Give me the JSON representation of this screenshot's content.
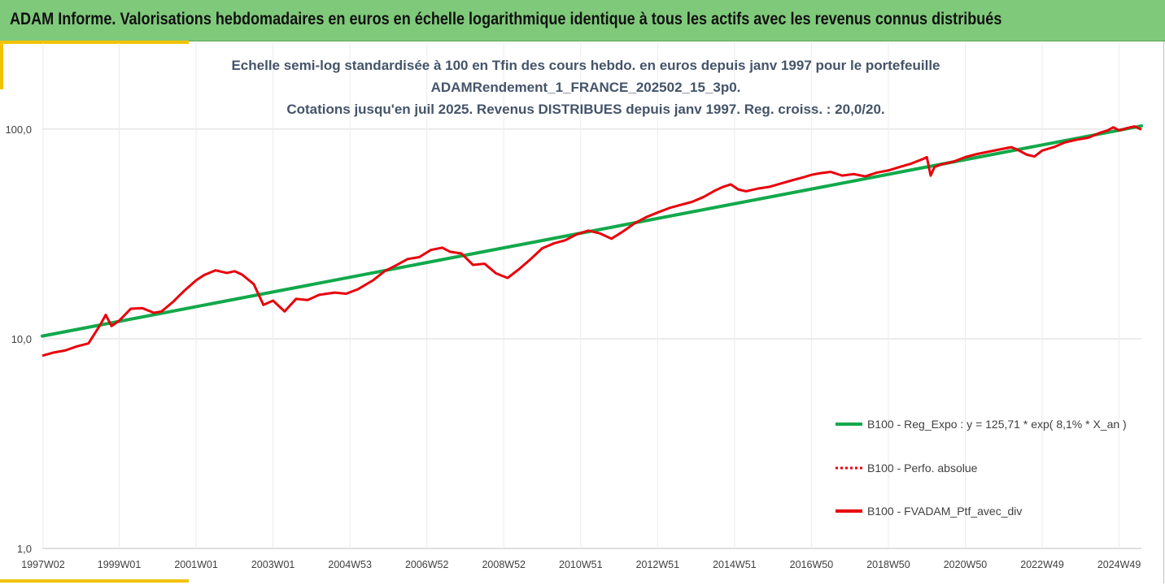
{
  "header": {
    "title": "ADAM Informe. Valorisations hebdomadaires en euros en échelle logarithmique identique à tous les actifs avec les revenus connus distribués"
  },
  "colors": {
    "banner": "#7fc97a",
    "accent": "#f2c200",
    "regression": "#12a94b",
    "portfolio": "#e8000b",
    "title_text": "#44546a"
  },
  "chart_data": {
    "type": "line",
    "title_lines": [
      "Echelle semi-log standardisée à 100 en Tfin des cours hebdo.  en euros depuis janv 1997 pour le portefeuille",
      "ADAMRendement_1_FRANCE_202502_15_3p0.",
      "Cotations  jusqu'en juil 2025. Revenus DISTRIBUES depuis janv 1997. Reg. croiss. : 20,0/20."
    ],
    "y_scale": "log",
    "ylim": [
      1,
      180
    ],
    "y_ticks": [
      "1,0",
      "10,0",
      "100,0"
    ],
    "y_tick_values": [
      1,
      10,
      100
    ],
    "xlim": [
      1997.0,
      2025.58
    ],
    "x_ticks": [
      "1997W02",
      "1999W01",
      "2001W01",
      "2003W01",
      "2004W53",
      "2006W52",
      "2008W52",
      "2010W51",
      "2012W51",
      "2014W51",
      "2016W50",
      "2018W50",
      "2020W50",
      "2022W49",
      "2024W49"
    ],
    "x_tick_values": [
      1997.02,
      1999.0,
      2001.0,
      2003.0,
      2005.0,
      2007.0,
      2009.0,
      2011.0,
      2013.0,
      2015.0,
      2017.0,
      2019.0,
      2021.0,
      2023.0,
      2025.0
    ],
    "grid": "vertical and horizontal light gray",
    "legend_position": "bottom-right",
    "series": [
      {
        "name": "B100 - Reg_Expo : y = 125,71 * exp( 8,1% *  X_an )",
        "style": "solid-green",
        "x": [
          1997.0,
          2025.58
        ],
        "y": [
          10.3,
          103.5
        ]
      },
      {
        "name": "B100 - Perfo. absolue",
        "style": "dotted-red",
        "x": [],
        "y": []
      },
      {
        "name": "B100 - FVADAM_Ptf_avec_div",
        "style": "solid-red",
        "x": [
          1997.0,
          1997.3,
          1997.6,
          1997.9,
          1998.2,
          1998.5,
          1998.65,
          1998.8,
          1999.0,
          1999.3,
          1999.6,
          1999.9,
          2000.1,
          2000.4,
          2000.7,
          2001.0,
          2001.2,
          2001.5,
          2001.8,
          2002.0,
          2002.2,
          2002.5,
          2002.75,
          2003.0,
          2003.3,
          2003.6,
          2003.9,
          2004.2,
          2004.6,
          2004.9,
          2005.2,
          2005.6,
          2005.9,
          2006.2,
          2006.5,
          2006.8,
          2007.1,
          2007.4,
          2007.6,
          2007.9,
          2008.2,
          2008.5,
          2008.8,
          2009.1,
          2009.4,
          2009.7,
          2010.0,
          2010.3,
          2010.6,
          2010.9,
          2011.2,
          2011.5,
          2011.8,
          2012.1,
          2012.4,
          2012.7,
          2013.0,
          2013.3,
          2013.6,
          2013.9,
          2014.2,
          2014.5,
          2014.7,
          2014.9,
          2015.1,
          2015.3,
          2015.6,
          2015.9,
          2016.2,
          2016.5,
          2016.8,
          2017.0,
          2017.2,
          2017.5,
          2017.8,
          2018.1,
          2018.4,
          2018.7,
          2019.0,
          2019.3,
          2019.6,
          2019.9,
          2020.0,
          2020.1,
          2020.2,
          2020.4,
          2020.7,
          2021.0,
          2021.3,
          2021.6,
          2021.9,
          2022.2,
          2022.4,
          2022.6,
          2022.8,
          2023.0,
          2023.3,
          2023.6,
          2023.9,
          2024.2,
          2024.5,
          2024.7,
          2024.85,
          2025.0,
          2025.2,
          2025.4,
          2025.58
        ],
        "y": [
          8.3,
          8.6,
          8.8,
          9.2,
          9.5,
          11.6,
          13.0,
          11.5,
          12.2,
          13.9,
          14.0,
          13.3,
          13.5,
          15.0,
          17.0,
          19.0,
          20.1,
          21.2,
          20.6,
          21.0,
          20.2,
          18.2,
          14.5,
          15.2,
          13.5,
          15.5,
          15.3,
          16.2,
          16.6,
          16.4,
          17.2,
          19.0,
          21.0,
          22.4,
          24.0,
          24.5,
          26.5,
          27.2,
          26.0,
          25.5,
          22.5,
          22.8,
          20.5,
          19.5,
          21.5,
          24.0,
          27.0,
          28.5,
          29.5,
          31.5,
          32.8,
          31.8,
          30.0,
          32.5,
          35.5,
          38.0,
          40.0,
          42.0,
          43.5,
          45.0,
          47.5,
          51.0,
          53.0,
          54.5,
          51.5,
          50.5,
          52.0,
          53.0,
          55.0,
          57.0,
          59.0,
          60.5,
          61.5,
          62.5,
          60.0,
          61.0,
          59.5,
          62.0,
          63.5,
          66.0,
          68.5,
          72.0,
          73.5,
          60.0,
          66.0,
          68.0,
          70.0,
          73.5,
          76.0,
          78.0,
          80.0,
          82.0,
          79.0,
          75.5,
          74.0,
          79.0,
          82.0,
          86.5,
          89.0,
          91.0,
          96.0,
          98.5,
          102.0,
          98.5,
          101.0,
          103.0,
          99.5
        ]
      }
    ]
  }
}
